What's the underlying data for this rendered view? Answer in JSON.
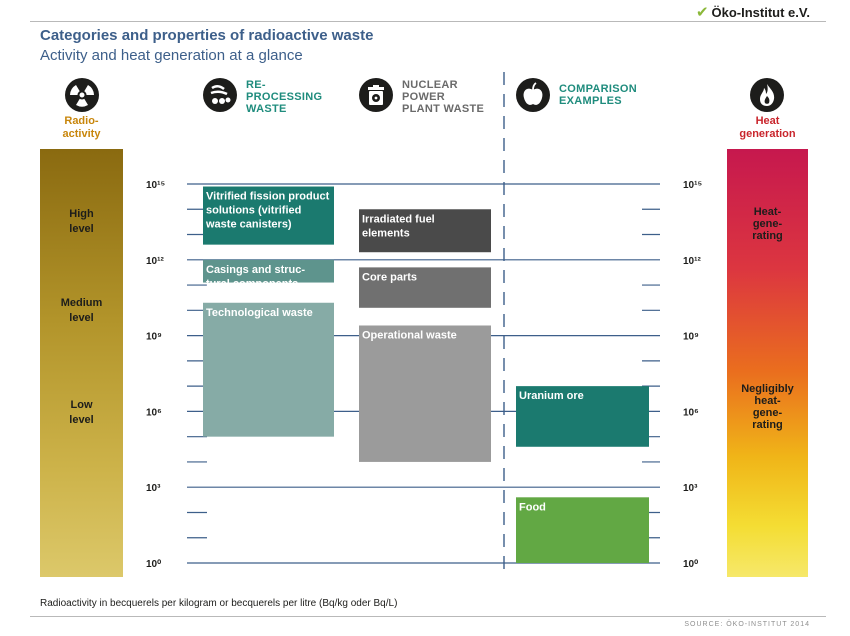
{
  "header": {
    "title": "Categories and properties of radioactive waste",
    "subtitle": "Activity and heat generation at a glance",
    "logo_text": "Öko-Institut e.V."
  },
  "icons": {
    "radioactivity": "radiation-icon",
    "reprocessing": "reprocessing-waste-icon",
    "nuclear_plant": "nuclear-waste-bin-icon",
    "comparison": "apple-icon",
    "heat": "flame-icon"
  },
  "categories": [
    {
      "label": "RE-\nPROCESSING\nWASTE",
      "color": "#1f8c7d"
    },
    {
      "label": "NUCLEAR\nPOWER\nPLANT WASTE",
      "color": "#6a6a6a"
    },
    {
      "label": "COMPARISON\nEXAMPLES",
      "color": "#1f8c7d"
    }
  ],
  "radioactivity": {
    "title": "Radio-\nactivity",
    "levels": [
      "High\nlevel",
      "Medium\nlevel",
      "Low\nlevel"
    ]
  },
  "heat": {
    "title": "Heat\ngeneration",
    "levels": [
      "Heat-\ngene-\nrating",
      "Negligibly\nheat-\ngene-\nrating"
    ]
  },
  "footer": {
    "axis_note": "Radioactivity in becquerels per kilogram or becquerels per litre (Bq/kg oder Bq/L)",
    "source": "SOURCE: ÖKO-INSTITUT 2014"
  },
  "colors": {
    "teal_dark": "#1b7a6f",
    "teal_light": "#86aba6",
    "gray_dark": "#4a4a4a",
    "gray_mid": "#707070",
    "gray_light": "#9b9b9b",
    "green": "#62a844",
    "axis_blue": "#3d5f8a"
  },
  "chart_data": {
    "type": "bar",
    "yscale": "log10",
    "ylim_exponent": [
      0,
      15
    ],
    "yticks_exponent": [
      0,
      3,
      6,
      9,
      12,
      15
    ],
    "ytick_labels": [
      "10⁰",
      "10³",
      "10⁶",
      "10⁹",
      "10¹²",
      "10¹⁵"
    ],
    "xlabel": "",
    "ylabel": "Radioactivity in becquerels per kilogram or becquerels per litre (Bq/kg oder Bq/L)",
    "groups": [
      {
        "name": "RE-PROCESSING WASTE",
        "ranges": [
          {
            "label": "Vitrified fission product\nsolutions (vitrified\nwaste canisters)",
            "low_exp": 12.6,
            "high_exp": 14.9,
            "color": "#1b7a6f"
          },
          {
            "label": "Casings and struc-\ntural components",
            "low_exp": 11.1,
            "high_exp": 12.0,
            "color": "#5e948d"
          },
          {
            "label": "Technological waste",
            "low_exp": 5.0,
            "high_exp": 10.3,
            "color": "#86aba6"
          }
        ]
      },
      {
        "name": "NUCLEAR POWER PLANT WASTE",
        "ranges": [
          {
            "label": "Irradiated fuel\nelements",
            "low_exp": 12.3,
            "high_exp": 14.0,
            "color": "#4a4a4a"
          },
          {
            "label": "Core parts",
            "low_exp": 10.1,
            "high_exp": 11.7,
            "color": "#707070"
          },
          {
            "label": "Operational waste",
            "low_exp": 4.0,
            "high_exp": 9.4,
            "color": "#9b9b9b"
          }
        ]
      },
      {
        "name": "COMPARISON EXAMPLES",
        "ranges": [
          {
            "label": "Uranium ore",
            "low_exp": 4.6,
            "high_exp": 7.0,
            "color": "#1b7a6f"
          },
          {
            "label": "Food",
            "low_exp": 0.0,
            "high_exp": 2.6,
            "color": "#62a844"
          }
        ]
      }
    ]
  }
}
